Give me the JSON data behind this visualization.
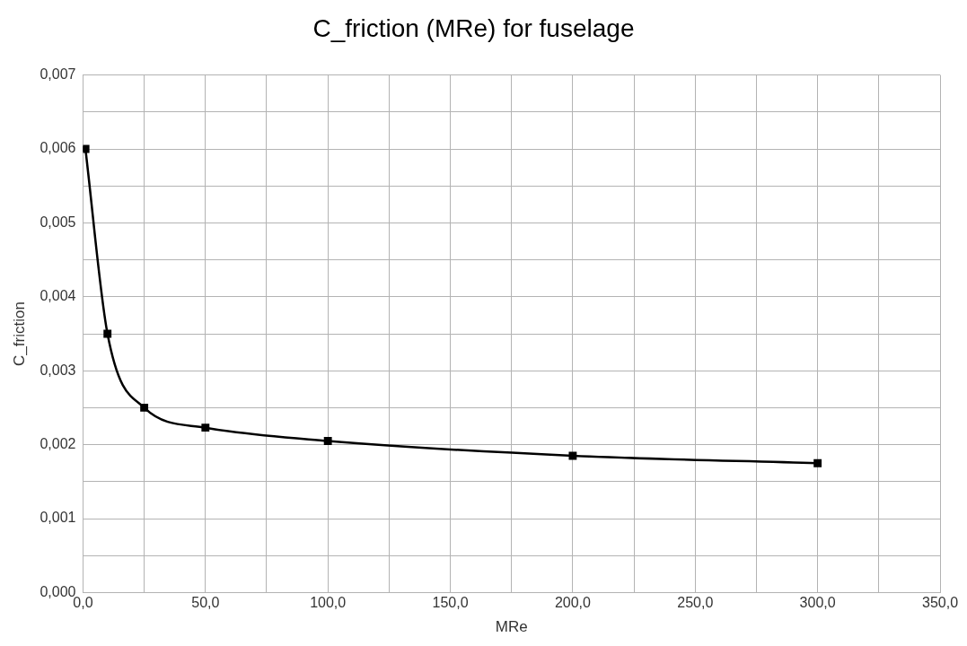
{
  "chart_data": {
    "type": "line",
    "title": "C_friction (MRe) for fuselage",
    "xlabel": "MRe",
    "ylabel": "C_friction",
    "x": [
      1,
      10,
      25,
      50,
      100,
      200,
      300
    ],
    "series": [
      {
        "color": "#000000",
        "values": [
          0.006,
          0.0035,
          0.0025,
          0.00223,
          0.00205,
          0.00185,
          0.00175
        ]
      }
    ],
    "xlim": [
      0,
      350
    ],
    "xticks": [
      {
        "value": 0,
        "label": "0,0"
      },
      {
        "value": 25,
        "label": null
      },
      {
        "value": 50,
        "label": "50,0"
      },
      {
        "value": 75,
        "label": null
      },
      {
        "value": 100,
        "label": "100,0"
      },
      {
        "value": 125,
        "label": null
      },
      {
        "value": 150,
        "label": "150,0"
      },
      {
        "value": 175,
        "label": null
      },
      {
        "value": 200,
        "label": "200,0"
      },
      {
        "value": 225,
        "label": null
      },
      {
        "value": 250,
        "label": "250,0"
      },
      {
        "value": 275,
        "label": null
      },
      {
        "value": 300,
        "label": "300,0"
      },
      {
        "value": 325,
        "label": null
      },
      {
        "value": 350,
        "label": "350,0"
      }
    ],
    "ylim": [
      0,
      0.007
    ],
    "yticks": [
      {
        "value": 0,
        "label": "0,000"
      },
      {
        "value": 0.0005,
        "label": null
      },
      {
        "value": 0.001,
        "label": "0,001"
      },
      {
        "value": 0.0015,
        "label": null
      },
      {
        "value": 0.002,
        "label": "0,002"
      },
      {
        "value": 0.0025,
        "label": null
      },
      {
        "value": 0.003,
        "label": "0,003"
      },
      {
        "value": 0.0035,
        "label": null
      },
      {
        "value": 0.004,
        "label": "0,004"
      },
      {
        "value": 0.0045,
        "label": null
      },
      {
        "value": 0.005,
        "label": "0,005"
      },
      {
        "value": 0.0055,
        "label": null
      },
      {
        "value": 0.006,
        "label": "0,006"
      },
      {
        "value": 0.0065,
        "label": null
      },
      {
        "value": 0.007,
        "label": "0,007"
      }
    ],
    "grid": true,
    "legend": false,
    "marker": "square",
    "line_style": "solid"
  }
}
